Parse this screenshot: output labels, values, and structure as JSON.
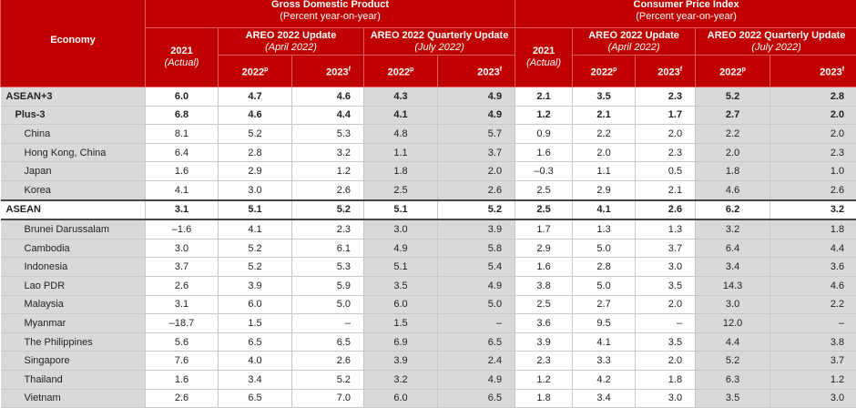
{
  "header": {
    "economy": "Economy",
    "gdp_title": "Gross Domestic Product",
    "gdp_sub": "(Percent year-on-year)",
    "cpi_title": "Consumer Price Index",
    "cpi_sub": "(Percent year-on-year)",
    "actual_year": "2021",
    "actual_label": "(Actual)",
    "april_title": "AREO 2022 Update",
    "april_sub": "(April 2022)",
    "july_title": "AREO 2022 Quarterly Update",
    "july_sub": "(July 2022)",
    "y2022": "2022",
    "p": "p",
    "y2023": "2023",
    "f": "f"
  },
  "rows": [
    {
      "name": "ASEAN+3",
      "type": "agg",
      "v": [
        "6.0",
        "4.7",
        "4.6",
        "4.3",
        "4.9",
        "2.1",
        "3.5",
        "2.3",
        "5.2",
        "2.8"
      ]
    },
    {
      "name": "Plus-3",
      "type": "sub",
      "v": [
        "6.8",
        "4.6",
        "4.4",
        "4.1",
        "4.9",
        "1.2",
        "2.1",
        "1.7",
        "2.7",
        "2.0"
      ]
    },
    {
      "name": "China",
      "type": "",
      "v": [
        "8.1",
        "5.2",
        "5.3",
        "4.8",
        "5.7",
        "0.9",
        "2.2",
        "2.0",
        "2.2",
        "2.0"
      ]
    },
    {
      "name": "Hong Kong, China",
      "type": "",
      "v": [
        "6.4",
        "2.8",
        "3.2",
        "1.1",
        "3.7",
        "1.6",
        "2.0",
        "2.3",
        "2.0",
        "2.3"
      ]
    },
    {
      "name": "Japan",
      "type": "",
      "v": [
        "1.6",
        "2.9",
        "1.2",
        "1.8",
        "2.0",
        "–0.3",
        "1.1",
        "0.5",
        "1.8",
        "1.0"
      ]
    },
    {
      "name": "Korea",
      "type": "",
      "v": [
        "4.1",
        "3.0",
        "2.6",
        "2.5",
        "2.6",
        "2.5",
        "2.9",
        "2.1",
        "4.6",
        "2.6"
      ]
    },
    {
      "name": "ASEAN",
      "type": "asean",
      "v": [
        "3.1",
        "5.1",
        "5.2",
        "5.1",
        "5.2",
        "2.5",
        "4.1",
        "2.6",
        "6.2",
        "3.2"
      ]
    },
    {
      "name": "Brunei Darussalam",
      "type": "",
      "v": [
        "–1.6",
        "4.1",
        "2.3",
        "3.0",
        "3.9",
        "1.7",
        "1.3",
        "1.3",
        "3.2",
        "1.8"
      ]
    },
    {
      "name": "Cambodia",
      "type": "",
      "v": [
        "3.0",
        "5.2",
        "6.1",
        "4.9",
        "5.8",
        "2.9",
        "5.0",
        "3.7",
        "6.4",
        "4.4"
      ]
    },
    {
      "name": "Indonesia",
      "type": "",
      "v": [
        "3.7",
        "5.2",
        "5.3",
        "5.1",
        "5.4",
        "1.6",
        "2.8",
        "3.0",
        "3.4",
        "3.6"
      ]
    },
    {
      "name": "Lao PDR",
      "type": "",
      "v": [
        "2.6",
        "3.9",
        "5.9",
        "3.5",
        "4.9",
        "3.8",
        "5.0",
        "3.5",
        "14.3",
        "4.6"
      ]
    },
    {
      "name": "Malaysia",
      "type": "",
      "v": [
        "3.1",
        "6.0",
        "5.0",
        "6.0",
        "5.0",
        "2.5",
        "2.7",
        "2.0",
        "3.0",
        "2.2"
      ]
    },
    {
      "name": "Myanmar",
      "type": "",
      "v": [
        "–18.7",
        "1.5",
        "–",
        "1.5",
        "–",
        "3.6",
        "9.5",
        "–",
        "12.0",
        "–"
      ]
    },
    {
      "name": "The Philippines",
      "type": "",
      "v": [
        "5.6",
        "6.5",
        "6.5",
        "6.9",
        "6.5",
        "3.9",
        "4.1",
        "3.5",
        "4.4",
        "3.8"
      ]
    },
    {
      "name": "Singapore",
      "type": "",
      "v": [
        "7.6",
        "4.0",
        "2.6",
        "3.9",
        "2.4",
        "2.3",
        "3.3",
        "2.0",
        "5.2",
        "3.7"
      ]
    },
    {
      "name": "Thailand",
      "type": "",
      "v": [
        "1.6",
        "3.4",
        "5.2",
        "3.2",
        "4.9",
        "1.2",
        "4.2",
        "1.8",
        "6.3",
        "1.2"
      ]
    },
    {
      "name": "Vietnam",
      "type": "",
      "v": [
        "2.6",
        "6.5",
        "7.0",
        "6.0",
        "6.5",
        "1.8",
        "3.4",
        "3.0",
        "3.5",
        "3.0"
      ]
    }
  ]
}
